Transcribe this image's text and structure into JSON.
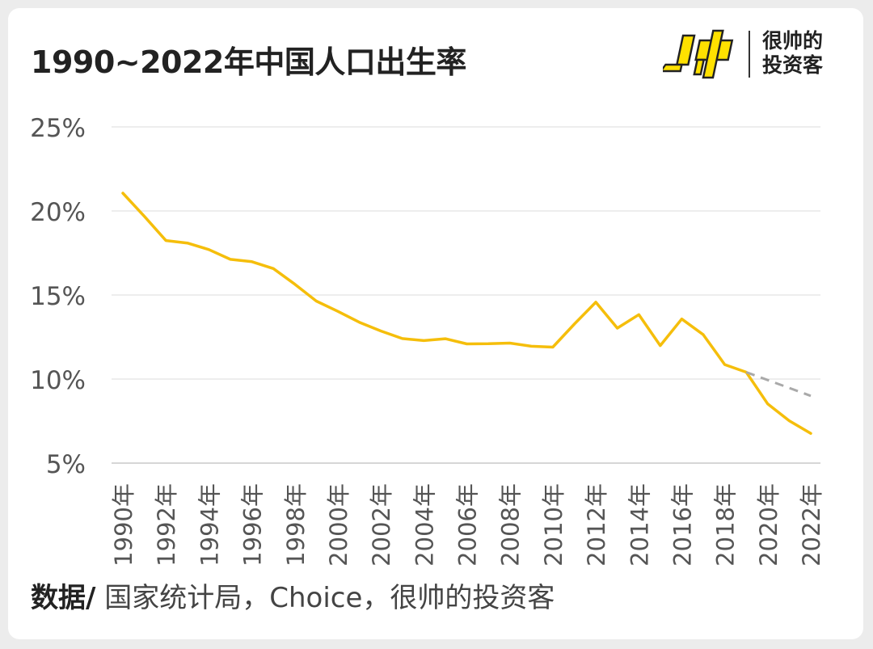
{
  "header": {
    "title": "1990~2022年中国人口出生率",
    "logo_line1": "很帅的",
    "logo_line2": "投资客"
  },
  "footer": {
    "source_label": "数据/",
    "source_text": " 国家统计局，Choice，很帅的投资客"
  },
  "chart_data": {
    "type": "line",
    "title": "1990~2022年中国人口出生率",
    "y_ticks": [
      "5%",
      "10%",
      "15%",
      "20%",
      "25%"
    ],
    "ylim": [
      5,
      25
    ],
    "grid": true,
    "x_tick_labels": [
      "1990年",
      "1992年",
      "1994年",
      "1996年",
      "1998年",
      "2000年",
      "2002年",
      "2004年",
      "2006年",
      "2008年",
      "2010年",
      "2012年",
      "2014年",
      "2016年",
      "2018年",
      "2020年",
      "2022年"
    ],
    "x": [
      1990,
      1991,
      1992,
      1993,
      1994,
      1995,
      1996,
      1997,
      1998,
      1999,
      2000,
      2001,
      2002,
      2003,
      2004,
      2005,
      2006,
      2007,
      2008,
      2009,
      2010,
      2011,
      2012,
      2013,
      2014,
      2015,
      2016,
      2017,
      2018,
      2019,
      2020,
      2021,
      2022
    ],
    "series": [
      {
        "color": "#F5BE0B",
        "values": [
          21.06,
          19.68,
          18.24,
          18.09,
          17.7,
          17.12,
          16.98,
          16.57,
          15.64,
          14.64,
          14.03,
          13.38,
          12.86,
          12.41,
          12.29,
          12.4,
          12.09,
          12.1,
          12.14,
          11.95,
          11.9,
          13.27,
          14.57,
          13.03,
          13.83,
          11.99,
          13.57,
          12.64,
          10.86,
          10.41,
          8.52,
          7.52,
          6.77
        ]
      },
      {
        "color": "#A9A9A9",
        "dashed": true,
        "x": [
          2019,
          2022
        ],
        "values": [
          10.41,
          9.0
        ]
      }
    ]
  }
}
